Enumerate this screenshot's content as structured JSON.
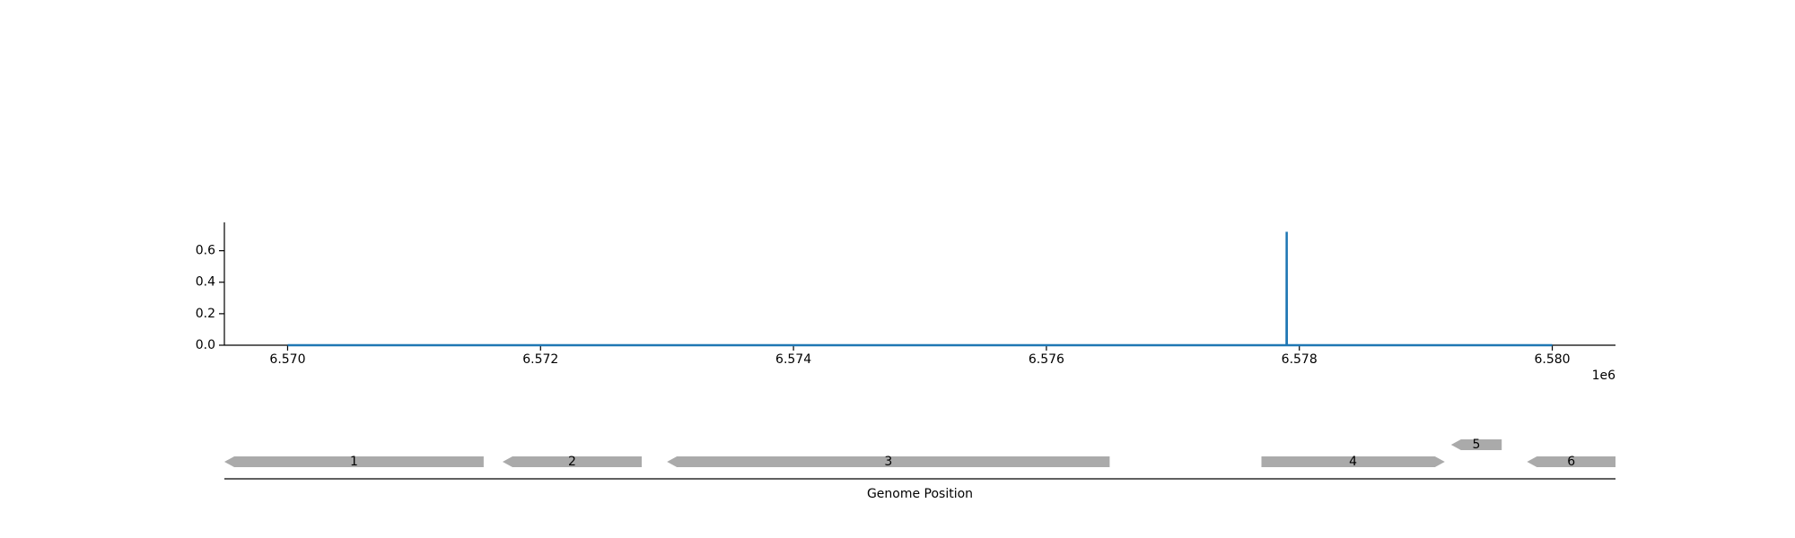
{
  "chart_data": [
    {
      "type": "line",
      "x": [
        6570000,
        6577899,
        6577900,
        6577901,
        6580000
      ],
      "y": [
        0,
        0,
        0.72,
        0,
        0
      ],
      "color": "#1f77b4",
      "xlim": [
        6569500,
        6580500
      ],
      "ylim": [
        0,
        0.78
      ],
      "x_ticks": [
        6570000,
        6572000,
        6574000,
        6576000,
        6578000,
        6580000
      ],
      "x_tick_labels": [
        "6.570",
        "6.572",
        "6.574",
        "6.576",
        "6.578",
        "6.580"
      ],
      "x_offset_label": "1e6",
      "y_ticks": [
        0.0,
        0.2,
        0.4,
        0.6
      ],
      "y_tick_labels": [
        "0.0",
        "0.2",
        "0.4",
        "0.6"
      ],
      "grid": false
    },
    {
      "type": "gene-track",
      "xlabel": "Genome Position",
      "feature_color": "#aaaaaa",
      "genes": [
        {
          "label": "1",
          "start": 6569500,
          "end": 6571550,
          "strand": "-",
          "row": 0
        },
        {
          "label": "2",
          "start": 6571700,
          "end": 6572800,
          "strand": "-",
          "row": 0
        },
        {
          "label": "3",
          "start": 6573000,
          "end": 6576500,
          "strand": "-",
          "row": 0
        },
        {
          "label": "4",
          "start": 6577700,
          "end": 6579150,
          "strand": "+",
          "row": 0
        },
        {
          "label": "5",
          "start": 6579200,
          "end": 6579600,
          "strand": "-",
          "row": 1
        },
        {
          "label": "6",
          "start": 6579800,
          "end": 6580500,
          "strand": "-",
          "row": 0
        }
      ]
    }
  ]
}
